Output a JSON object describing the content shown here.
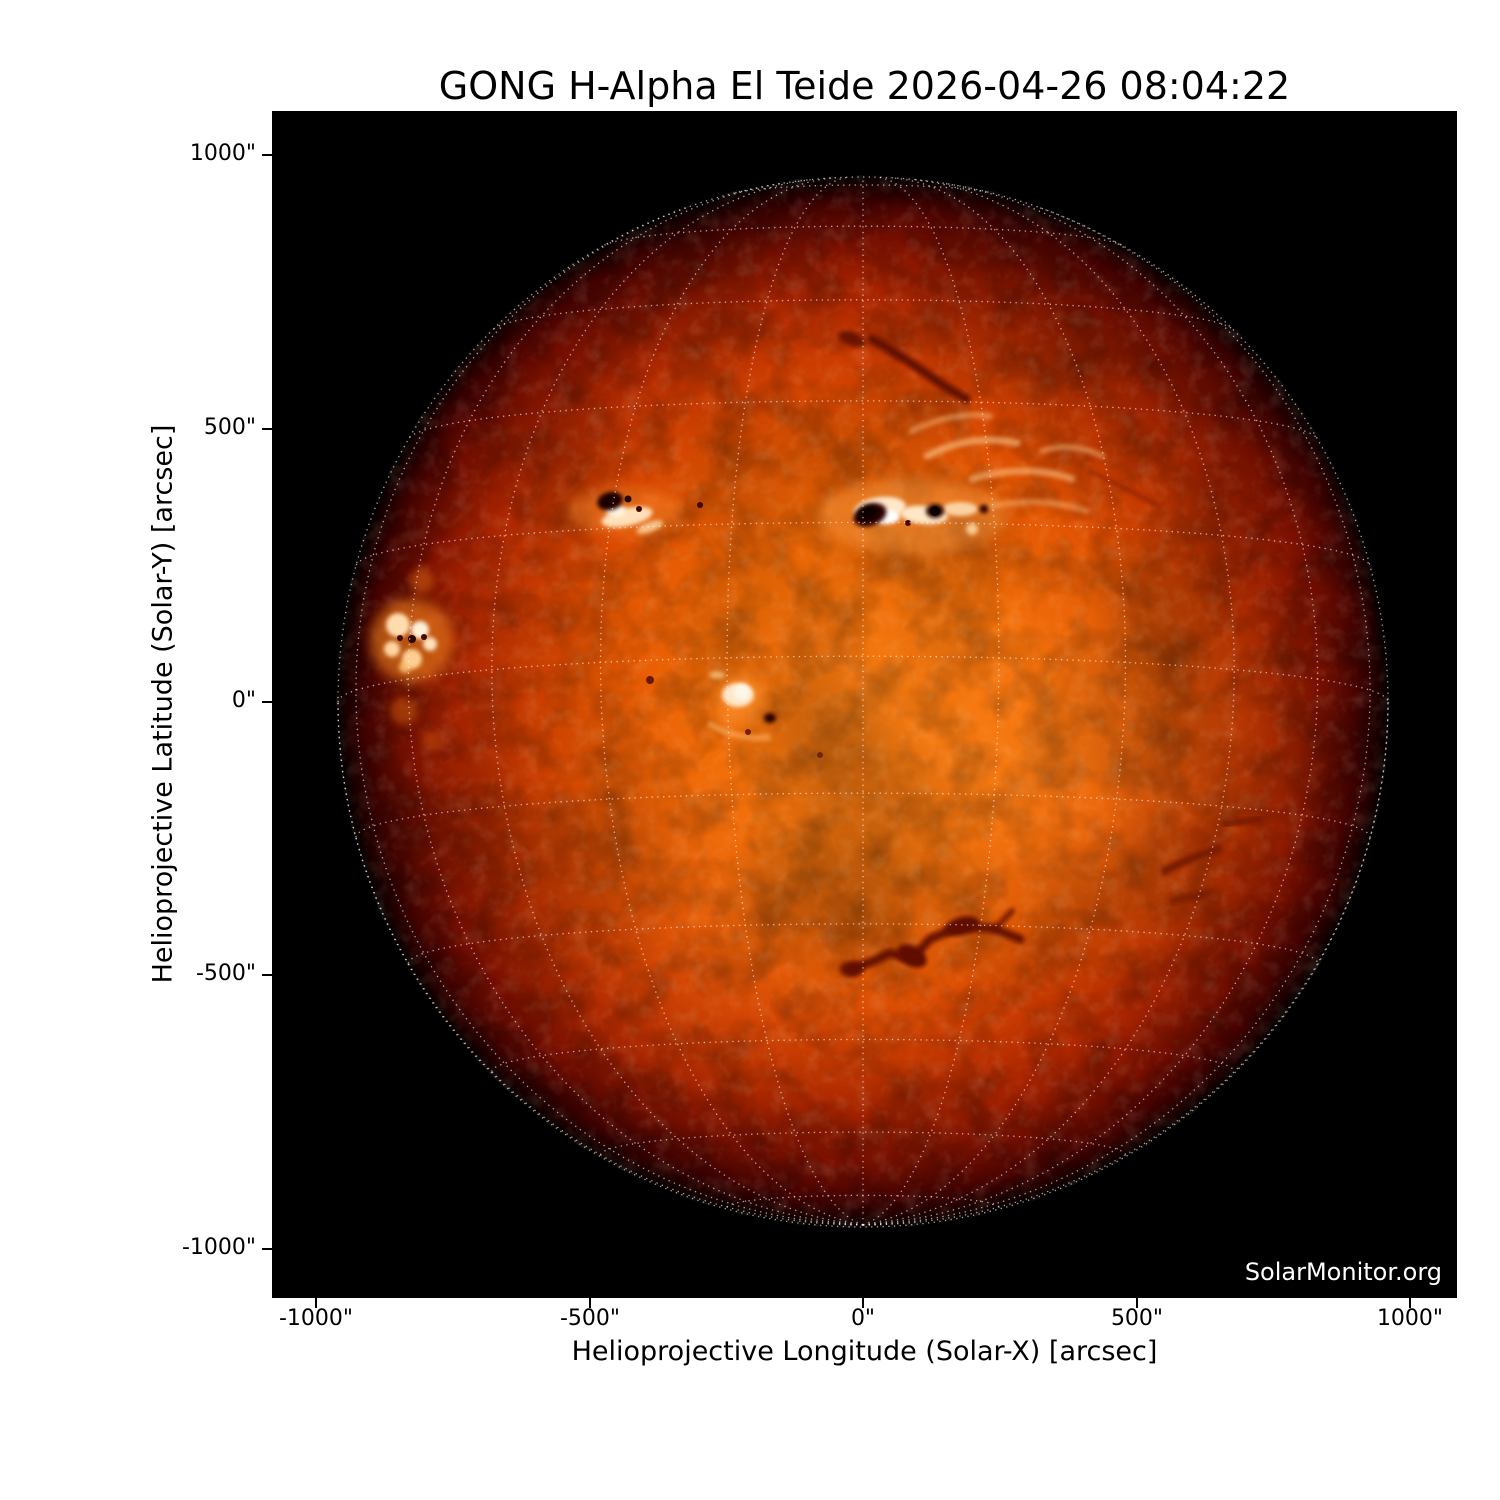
{
  "title": "GONG H-Alpha El Teide 2026-04-26 08:04:22",
  "watermark": "SolarMonitor.org",
  "axes": {
    "x_label": "Helioprojective Longitude (Solar-X) [arcsec]",
    "y_label": "Helioprojective Latitude (Solar-Y) [arcsec]",
    "x_tick_labels": [
      "-1000\"",
      "-500\"",
      "0\"",
      "500\"",
      "1000\""
    ],
    "y_tick_labels": [
      "1000\"",
      "500\"",
      "0\"",
      "-500\"",
      "-1000\""
    ]
  },
  "colors": {
    "page_background": "#ffffff",
    "plot_background": "#000000",
    "axis_text": "#000000",
    "grid_overlay": "#ffffff",
    "disk_center": "#f87a10",
    "disk_mid": "#cb3c01",
    "disk_limb": "#4b0400",
    "plage_bright": "#fff3e0",
    "sunspot_dark": "#0a0100",
    "filament_dark": "#5c0a00"
  },
  "solar_map": {
    "grid_spacing_deg": 15,
    "b0_deg": -5,
    "disk_radius_arcsec": 960
  },
  "chart_data": {
    "type": "heatmap",
    "title": "GONG H-Alpha El Teide 2026-04-26 08:04:22",
    "xlabel": "Helioprojective Longitude (Solar-X) [arcsec]",
    "ylabel": "Helioprojective Latitude (Solar-Y) [arcsec]",
    "xlim": [
      -1080,
      1086
    ],
    "ylim": [
      -1090,
      1081
    ],
    "x_ticks_arcsec": [
      -1000,
      -500,
      0,
      500,
      1000
    ],
    "y_ticks_arcsec": [
      1000,
      500,
      0,
      -500,
      -1000
    ],
    "grid": "heliographic lat/lon dotted white overlay every 15 deg plus dotted limb circle",
    "legend_position": "none",
    "solar_disk": {
      "center_arcsec": [
        0,
        0
      ],
      "radius_arcsec": 960
    },
    "features": [
      {
        "type": "active-region",
        "x_arcsec": 60,
        "y_arcsec": 345,
        "description": "Large active region: bright white plage with two dark sunspots"
      },
      {
        "type": "active-region",
        "x_arcsec": -460,
        "y_arcsec": 370,
        "description": "Plage streak with dark sunspot"
      },
      {
        "type": "active-region-plage",
        "x_arcsec": -830,
        "y_arcsec": 115,
        "description": "Very bright plage cluster near east limb"
      },
      {
        "type": "plage",
        "x_arcsec": -230,
        "y_arcsec": 5,
        "description": "Compact bright plage with small sunspot near disk center"
      },
      {
        "type": "bright-wisps",
        "x_arcsec": 250,
        "y_arcsec": 450,
        "description": "Curved bright plage wisps north-east of main active region"
      },
      {
        "type": "filament",
        "x_arcsec": 100,
        "y_arcsec": 610,
        "description": "Dark filament, north of disk center"
      },
      {
        "type": "filament",
        "x_arcsec": 140,
        "y_arcsec": -445,
        "description": "Prominent zigzag dark filament, southern hemisphere"
      },
      {
        "type": "filament",
        "x_arcsec": 620,
        "y_arcsec": -270,
        "description": "Dark filament fragments, south-west quadrant"
      }
    ]
  }
}
